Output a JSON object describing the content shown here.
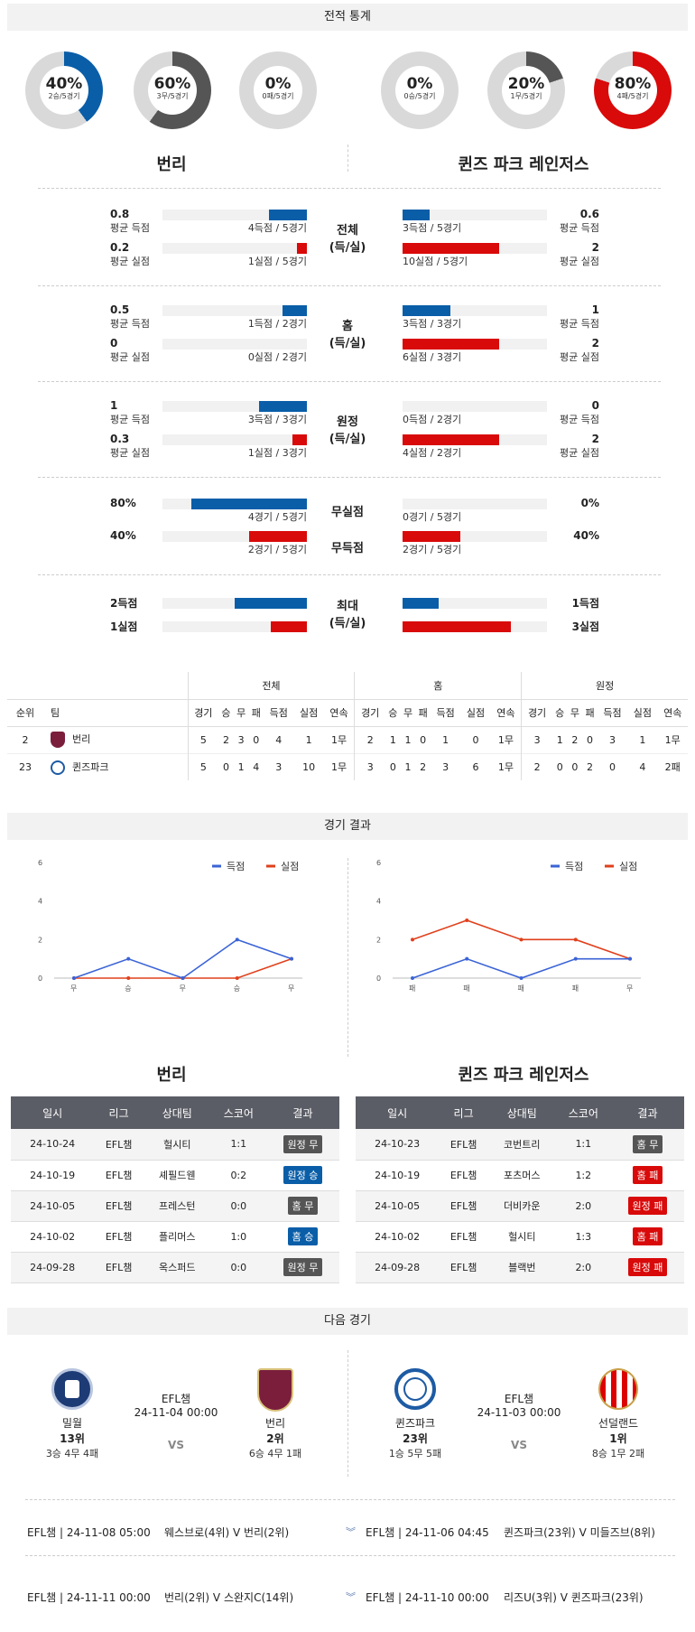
{
  "sections": {
    "stats": "전적 통계",
    "results": "경기 결과",
    "next": "다음 경기"
  },
  "gauges": [
    {
      "pct": "40%",
      "sub": "2승/5경기",
      "value": 40,
      "color": "#0a5ea8"
    },
    {
      "pct": "60%",
      "sub": "3무/5경기",
      "value": 60,
      "color": "#555555"
    },
    {
      "pct": "0%",
      "sub": "0패/5경기",
      "value": 0,
      "color": "#d90a0a"
    },
    {
      "pct": "0%",
      "sub": "0승/5경기",
      "value": 0,
      "color": "#0a5ea8"
    },
    {
      "pct": "20%",
      "sub": "1무/5경기",
      "value": 20,
      "color": "#555555"
    },
    {
      "pct": "80%",
      "sub": "4패/5경기",
      "value": 80,
      "color": "#d90a0a"
    }
  ],
  "teams": {
    "home": "번리",
    "away": "퀸즈 파크 레인저스"
  },
  "compare": [
    {
      "label1": "전체",
      "label2": "(득/실)",
      "rows": [
        {
          "lv": "0.8",
          "ll": "평균 득점",
          "lbar": "4득점 / 5경기",
          "lf": 0.26,
          "rv": "0.6",
          "rl": "평균 득점",
          "rbar": "3득점 / 5경기",
          "rf": 0.19,
          "c": "blue"
        },
        {
          "lv": "0.2",
          "ll": "평균 실점",
          "lbar": "1실점 / 5경기",
          "lf": 0.07,
          "rv": "2",
          "rl": "평균 실점",
          "rbar": "10실점 / 5경기",
          "rf": 0.67,
          "c": "red"
        }
      ]
    },
    {
      "label1": "홈",
      "label2": "(득/실)",
      "rows": [
        {
          "lv": "0.5",
          "ll": "평균 득점",
          "lbar": "1득점 / 2경기",
          "lf": 0.17,
          "rv": "1",
          "rl": "평균 득점",
          "rbar": "3득점 / 3경기",
          "rf": 0.33,
          "c": "blue"
        },
        {
          "lv": "0",
          "ll": "평균 실점",
          "lbar": "0실점 / 2경기",
          "lf": 0,
          "rv": "2",
          "rl": "평균 실점",
          "rbar": "6실점 / 3경기",
          "rf": 0.67,
          "c": "red"
        }
      ]
    },
    {
      "label1": "원정",
      "label2": "(득/실)",
      "rows": [
        {
          "lv": "1",
          "ll": "평균 득점",
          "lbar": "3득점 / 3경기",
          "lf": 0.33,
          "rv": "0",
          "rl": "평균 득점",
          "rbar": "0득점 / 2경기",
          "rf": 0,
          "c": "blue"
        },
        {
          "lv": "0.3",
          "ll": "평균 실점",
          "lbar": "1실점 / 3경기",
          "lf": 0.1,
          "rv": "2",
          "rl": "평균 실점",
          "rbar": "4실점 / 2경기",
          "rf": 0.67,
          "c": "red"
        }
      ]
    }
  ],
  "clean": {
    "rows": [
      {
        "label": "무실점",
        "lv": "80%",
        "lbar": "4경기 / 5경기",
        "lf": 0.8,
        "rv": "0%",
        "rbar": "0경기 / 5경기",
        "rf": 0,
        "c": "blue"
      },
      {
        "label": "무득점",
        "lv": "40%",
        "lbar": "2경기 / 5경기",
        "lf": 0.4,
        "rv": "40%",
        "rbar": "2경기 / 5경기",
        "rf": 0.4,
        "c": "red"
      }
    ]
  },
  "maxrow": {
    "label1": "최대",
    "label2": "(득/실)",
    "l1": "2득점",
    "l2": "1실점",
    "r1": "1득점",
    "r2": "3실점",
    "lf1": 0.5,
    "lf2": 0.25,
    "rf1": 0.25,
    "rf2": 0.75
  },
  "standings": {
    "groups": [
      "전체",
      "홈",
      "원정"
    ],
    "rank": "순위",
    "team": "팀",
    "cols": [
      "경기",
      "승",
      "무",
      "패",
      "득점",
      "실점",
      "연속"
    ],
    "rows": [
      {
        "rank": "2",
        "name": "번리",
        "vals": [
          "5",
          "2",
          "3",
          "0",
          "4",
          "1",
          "1무",
          "2",
          "1",
          "1",
          "0",
          "1",
          "0",
          "1무",
          "3",
          "1",
          "2",
          "0",
          "3",
          "1",
          "1무"
        ]
      },
      {
        "rank": "23",
        "name": "퀸즈파크",
        "vals": [
          "5",
          "0",
          "1",
          "4",
          "3",
          "10",
          "1무",
          "3",
          "0",
          "1",
          "2",
          "3",
          "6",
          "1무",
          "2",
          "0",
          "0",
          "2",
          "0",
          "4",
          "2패"
        ]
      }
    ]
  },
  "legend": {
    "scored": "득점",
    "conceded": "실점"
  },
  "chart_data": [
    {
      "type": "line",
      "x": [
        "무",
        "승",
        "무",
        "승",
        "무"
      ],
      "yticks": [
        "0",
        "2",
        "4",
        "6"
      ],
      "ylim": [
        0,
        6
      ],
      "series": [
        {
          "name": "득점",
          "values": [
            0,
            1,
            0,
            2,
            1
          ],
          "color": "#3a63d6"
        },
        {
          "name": "실점",
          "values": [
            0,
            0,
            0,
            0,
            1
          ],
          "color": "#e0401c"
        }
      ]
    },
    {
      "type": "line",
      "x": [
        "패",
        "패",
        "패",
        "패",
        "무"
      ],
      "yticks": [
        "0",
        "2",
        "4",
        "6"
      ],
      "ylim": [
        0,
        6
      ],
      "series": [
        {
          "name": "득점",
          "values": [
            0,
            1,
            0,
            1,
            1
          ],
          "color": "#3a63d6"
        },
        {
          "name": "실점",
          "values": [
            2,
            3,
            2,
            2,
            1
          ],
          "color": "#e0401c"
        }
      ]
    }
  ],
  "results": {
    "headers": [
      "일시",
      "리그",
      "상대팀",
      "스코어",
      "결과"
    ],
    "home": [
      {
        "d": "24-10-24",
        "l": "EFL챔",
        "o": "헐시티",
        "s": "1:1",
        "r": "원정 무",
        "c": "#555555"
      },
      {
        "d": "24-10-19",
        "l": "EFL챔",
        "o": "셰필드웬",
        "s": "0:2",
        "r": "원정 승",
        "c": "#0a5ea8"
      },
      {
        "d": "24-10-05",
        "l": "EFL챔",
        "o": "프레스턴",
        "s": "0:0",
        "r": "홈 무",
        "c": "#555555"
      },
      {
        "d": "24-10-02",
        "l": "EFL챔",
        "o": "플리머스",
        "s": "1:0",
        "r": "홈 승",
        "c": "#0a5ea8"
      },
      {
        "d": "24-09-28",
        "l": "EFL챔",
        "o": "옥스퍼드",
        "s": "0:0",
        "r": "원정 무",
        "c": "#555555"
      }
    ],
    "away": [
      {
        "d": "24-10-23",
        "l": "EFL챔",
        "o": "코번트리",
        "s": "1:1",
        "r": "홈 무",
        "c": "#555555"
      },
      {
        "d": "24-10-19",
        "l": "EFL챔",
        "o": "포츠머스",
        "s": "1:2",
        "r": "홈 패",
        "c": "#d90a0a"
      },
      {
        "d": "24-10-05",
        "l": "EFL챔",
        "o": "더비카운",
        "s": "2:0",
        "r": "원정 패",
        "c": "#d90a0a"
      },
      {
        "d": "24-10-02",
        "l": "EFL챔",
        "o": "헐시티",
        "s": "1:3",
        "r": "홈 패",
        "c": "#d90a0a"
      },
      {
        "d": "24-09-28",
        "l": "EFL챔",
        "o": "블랙번",
        "s": "2:0",
        "r": "원정 패",
        "c": "#d90a0a"
      }
    ]
  },
  "next": {
    "left": {
      "t1": "밀월",
      "t1rank": "13위",
      "t1rec": "3승 4무 4패",
      "league": "EFL챔",
      "date": "24-11-04 00:00",
      "vs": "VS",
      "t2": "번리",
      "t2rank": "2위",
      "t2rec": "6승 4무 1패"
    },
    "right": {
      "t1": "퀸즈파크",
      "t1rank": "23위",
      "t1rec": "1승 5무 5패",
      "league": "EFL챔",
      "date": "24-11-03 00:00",
      "vs": "VS",
      "t2": "선덜랜드",
      "t2rank": "1위",
      "t2rec": "8승 1무 2패"
    }
  },
  "upcoming": [
    {
      "left": "EFL챔 | 24-11-08 05:00",
      "lm": "웨스브로(4위) V 번리(2위)",
      "right": "EFL챔 | 24-11-06 04:45",
      "rm": "퀸즈파크(23위) V 미들즈브(8위)"
    },
    {
      "left": "EFL챔 | 24-11-11 00:00",
      "lm": "번리(2위) V 스완지C(14위)",
      "right": "EFL챔 | 24-11-10 00:00",
      "rm": "리즈U(3위) V 퀸즈파크(23위)"
    }
  ]
}
